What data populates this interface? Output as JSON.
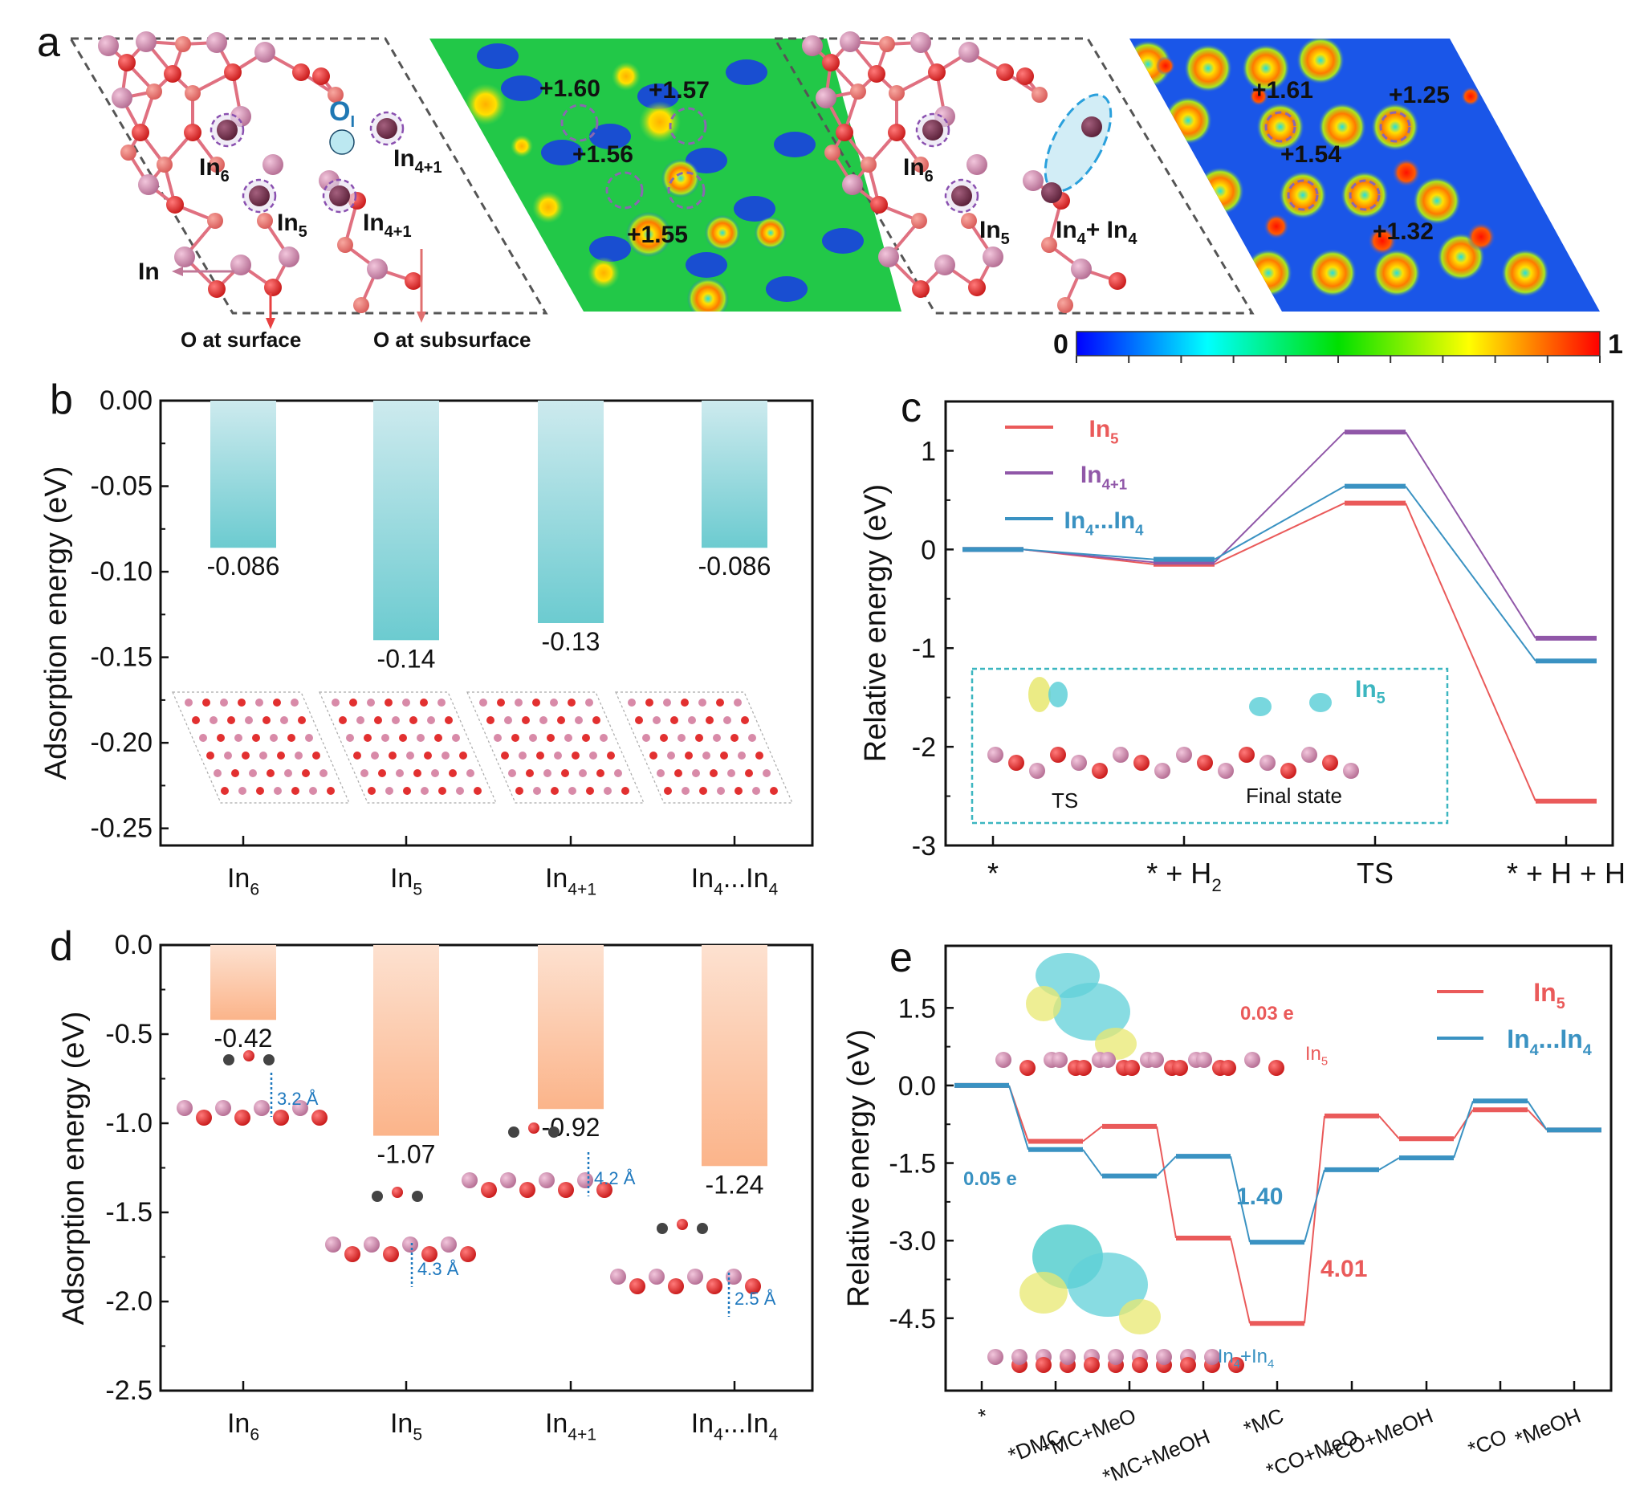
{
  "panel_labels": {
    "a": "a",
    "b": "b",
    "c": "c",
    "d": "d",
    "e": "e"
  },
  "panel_a": {
    "structure1": {
      "site_labels": [
        {
          "base": "In",
          "sub": "6"
        },
        {
          "base": "In",
          "sub": "4+1"
        },
        {
          "base": "In",
          "sub": "5"
        },
        {
          "base": "In",
          "sub": "4+1"
        }
      ],
      "oxygen_label": {
        "base": "O",
        "sub": "I"
      },
      "legend": {
        "in": "In",
        "o_surface": "O at surface",
        "o_subsurface": "O at subsurface"
      }
    },
    "heatmap1": {
      "charges": [
        "+1.60",
        "+1.57",
        "+1.56",
        "+1.55"
      ]
    },
    "structure2": {
      "site_labels": [
        {
          "base": "In",
          "sub": "6"
        },
        {
          "base": "In",
          "sub": "5"
        },
        {
          "base": "In",
          "sub": "4",
          "base2": "+ In",
          "sub2": "4"
        }
      ]
    },
    "heatmap2": {
      "charges": [
        "+1.61",
        "+1.25",
        "+1.54",
        "+1.32"
      ]
    },
    "colorbar": {
      "min": "0",
      "max": "1",
      "colors": [
        "#0000ff",
        "#00ffff",
        "#00e000",
        "#ffff00",
        "#ff0000"
      ]
    }
  },
  "chart_data": [
    {
      "id": "b",
      "type": "bar",
      "title": "",
      "ylabel": "Adsorption energy (eV)",
      "xlabel": "",
      "categories": [
        {
          "base": "In",
          "sub": "6"
        },
        {
          "base": "In",
          "sub": "5"
        },
        {
          "base": "In",
          "sub": "4+1"
        },
        {
          "base": "In",
          "sub": "4",
          "mid": "...In",
          "sub2": "4"
        }
      ],
      "values": [
        -0.086,
        -0.14,
        -0.13,
        -0.086
      ],
      "value_labels": [
        "-0.086",
        "-0.14",
        "-0.13",
        "-0.086"
      ],
      "ylim": [
        -0.26,
        0.0
      ],
      "yticks": [
        "0.00",
        "-0.05",
        "-0.10",
        "-0.15",
        "-0.20",
        "-0.25"
      ],
      "ytick_values": [
        0.0,
        -0.05,
        -0.1,
        -0.15,
        -0.2,
        -0.25
      ],
      "bar_color_top": "#cdeaee",
      "bar_color_bottom": "#6ccbd0",
      "grid": false
    },
    {
      "id": "c",
      "type": "line",
      "title": "",
      "ylabel": "Relative energy (eV)",
      "categories": [
        {
          "base": "*",
          "sub": ""
        },
        {
          "base": "* + H",
          "sub": "2"
        },
        {
          "base": "TS",
          "sub": ""
        },
        {
          "base": "* + H + H",
          "sub": ""
        }
      ],
      "ylim": [
        -3,
        1.5
      ],
      "yticks": [
        "1",
        "0",
        "-1",
        "-2",
        "-3"
      ],
      "ytick_values": [
        1,
        0,
        -1,
        -2,
        -3
      ],
      "legend_position": "top-left",
      "series": [
        {
          "name": {
            "base": "In",
            "sub": "5"
          },
          "color": "#ea5a5a",
          "values": [
            0,
            -0.15,
            0.47,
            -2.55
          ]
        },
        {
          "name": {
            "base": "In",
            "sub": "4+1"
          },
          "color": "#9057a8",
          "values": [
            0,
            -0.13,
            1.19,
            -0.9
          ]
        },
        {
          "name": {
            "base": "In",
            "sub": "4",
            "mid": "...In",
            "sub2": "4"
          },
          "color": "#3a92c2",
          "values": [
            0,
            -0.1,
            0.64,
            -1.13
          ]
        }
      ],
      "inset": {
        "labels": [
          "TS",
          "Final state"
        ],
        "site": {
          "base": "In",
          "sub": "5"
        },
        "border_color": "#3cb6c0"
      },
      "grid": false
    },
    {
      "id": "d",
      "type": "bar",
      "title": "",
      "ylabel": "Adsorption energy (eV)",
      "categories": [
        {
          "base": "In",
          "sub": "6"
        },
        {
          "base": "In",
          "sub": "5"
        },
        {
          "base": "In",
          "sub": "4+1"
        },
        {
          "base": "In",
          "sub": "4",
          "mid": "...In",
          "sub2": "4"
        }
      ],
      "values": [
        -0.42,
        -1.07,
        -0.92,
        -1.24
      ],
      "value_labels": [
        "-0.42",
        "-1.07",
        "-0.92",
        "-1.24"
      ],
      "ylim": [
        -2.5,
        0.0
      ],
      "yticks": [
        "0.0",
        "-0.5",
        "-1.0",
        "-1.5",
        "-2.0",
        "-2.5"
      ],
      "ytick_values": [
        0.0,
        -0.5,
        -1.0,
        -1.5,
        -2.0,
        -2.5
      ],
      "bar_color_top": "#fde1d0",
      "bar_color_bottom": "#fbb48a",
      "annotations": [
        "3.2 Å",
        "4.3 Å",
        "4.2 Å",
        "2.5 Å"
      ],
      "annotation_color": "#1e78be",
      "grid": false
    },
    {
      "id": "e",
      "type": "line",
      "title": "",
      "ylabel": "Relative energy (eV)",
      "categories": [
        "*",
        "*DMC",
        "*MC+MeO",
        "*MC+MeOH",
        "*MC",
        "*CO+MeO",
        "*CO+MeOH",
        "*CO",
        "*MeOH"
      ],
      "ylim": [
        -5.9,
        2.7
      ],
      "yticks": [
        "1.5",
        "0.0",
        "-1.5",
        "-3.0",
        "-4.5"
      ],
      "ytick_values": [
        1.5,
        0.0,
        -1.5,
        -3.0,
        -4.5
      ],
      "legend_position": "top-right",
      "series": [
        {
          "name": {
            "base": "In",
            "sub": "5"
          },
          "color": "#ea5a5a",
          "values": [
            0,
            -1.08,
            -0.79,
            -2.95,
            -4.6,
            -0.59,
            -1.03,
            -0.47,
            -0.86
          ]
        },
        {
          "name": {
            "base": "In",
            "sub": "4",
            "mid": "...In",
            "sub2": "4"
          },
          "color": "#3a92c2",
          "values": [
            0,
            -1.24,
            -1.75,
            -1.37,
            -3.03,
            -1.63,
            -1.4,
            -0.3,
            -0.86
          ]
        }
      ],
      "annotations": [
        {
          "text": "1.40",
          "color": "#3a92c2"
        },
        {
          "text": "4.01",
          "color": "#ea5a5a"
        },
        {
          "text": "0.03 e",
          "color": "#ea5a5a"
        },
        {
          "text": "0.05 e",
          "color": "#3a92c2"
        }
      ],
      "inset_labels": [
        {
          "base": "In",
          "sub": "5",
          "color": "#ea5a5a"
        },
        {
          "base": "In",
          "sub": "4",
          "mid": "+In",
          "sub2": "4",
          "color": "#3a92c2"
        }
      ],
      "grid": false
    }
  ]
}
